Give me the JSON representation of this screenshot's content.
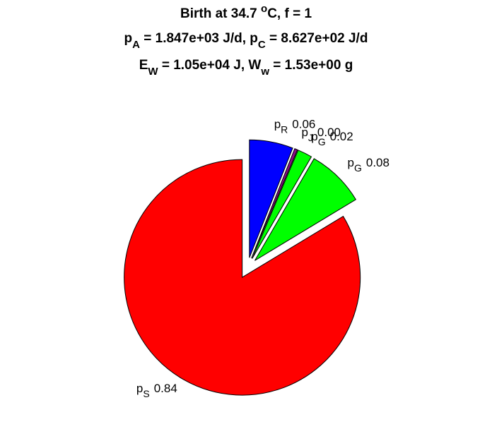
{
  "chart_data": {
    "type": "pie",
    "title": [
      [
        "Birth at 34.7 ",
        {
          "sup": "o"
        },
        "C, f = 1"
      ],
      [
        "p",
        {
          "sub": "A"
        },
        " = 1.847e+03 J/d, p",
        {
          "sub": "C"
        },
        " = 8.627e+02 J/d"
      ],
      [
        "E",
        {
          "sub": "W"
        },
        " = 1.05e+04 J, W",
        {
          "sub": "w"
        },
        " = 1.53e+00 g"
      ]
    ],
    "label_prefix": "p",
    "categories": [
      "R",
      "J",
      "G",
      "G",
      "S"
    ],
    "values": [
      0.06,
      0.004,
      0.02,
      0.08,
      0.84
    ],
    "value_labels": [
      "0.06",
      "0.00",
      "0.02",
      "0.08",
      "0.84"
    ],
    "colors": [
      "#0000ff",
      "#8b0a8b",
      "#00ff00",
      "#00ff00",
      "#ff0000"
    ],
    "explode": true
  }
}
